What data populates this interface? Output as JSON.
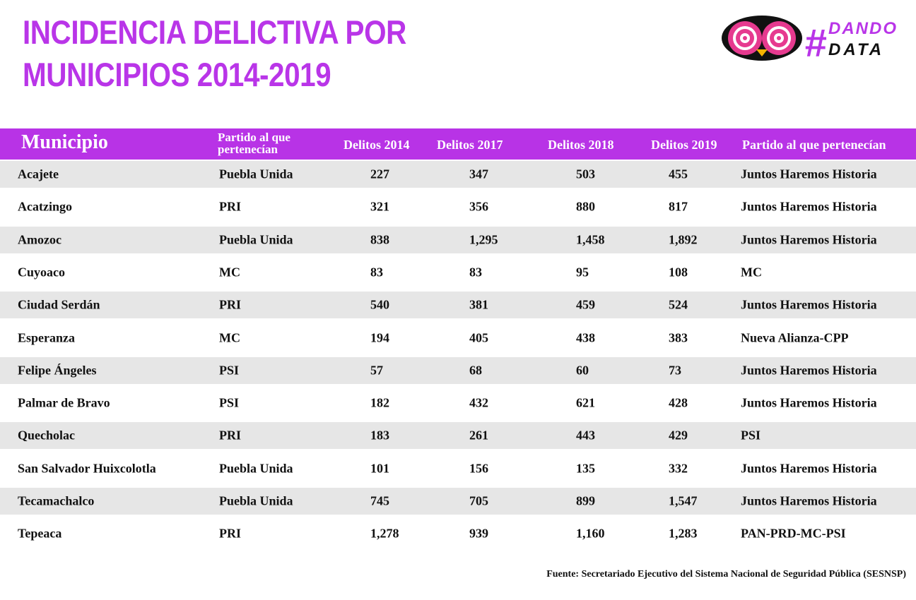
{
  "header": {
    "title": [
      "INCIDENCIA DELICTIVA POR",
      "MUNICIPIOS 2014-2019"
    ]
  },
  "logo": {
    "hash": "#",
    "line1": "DANDO",
    "line2": "DATA"
  },
  "table": {
    "columns": [
      "Municipio",
      "Partido al que pertenecían",
      "Delitos 2014",
      "Delitos 2017",
      "Delitos 2018",
      "Delitos 2019",
      "Partido al que pertenecían"
    ],
    "rows": [
      [
        "Acajete",
        "Puebla Unida",
        "227",
        "347",
        "503",
        "455",
        "Juntos Haremos Historia"
      ],
      [
        "Acatzingo",
        "PRI",
        "321",
        "356",
        "880",
        "817",
        "Juntos Haremos Historia"
      ],
      [
        "Amozoc",
        "Puebla Unida",
        "838",
        "1,295",
        "1,458",
        "1,892",
        "Juntos Haremos Historia"
      ],
      [
        "Cuyoaco",
        "MC",
        "83",
        "83",
        "95",
        "108",
        "MC"
      ],
      [
        "Ciudad Serdán",
        "PRI",
        "540",
        "381",
        "459",
        "524",
        "Juntos Haremos Historia"
      ],
      [
        "Esperanza",
        "MC",
        "194",
        "405",
        "438",
        "383",
        "Nueva Alianza-CPP"
      ],
      [
        "Felipe Ángeles",
        "PSI",
        "57",
        "68",
        "60",
        "73",
        "Juntos Haremos Historia"
      ],
      [
        "Palmar de Bravo",
        "PSI",
        "182",
        "432",
        "621",
        "428",
        "Juntos Haremos Historia"
      ],
      [
        "Quecholac",
        "PRI",
        "183",
        "261",
        "443",
        "429",
        "PSI"
      ],
      [
        "San Salvador Huixcolotla",
        "Puebla Unida",
        "101",
        "156",
        "135",
        "332",
        "Juntos Haremos Historia"
      ],
      [
        "Tecamachalco",
        "Puebla Unida",
        "745",
        "705",
        "899",
        "1,547",
        "Juntos Haremos Historia"
      ],
      [
        "Tepeaca",
        "PRI",
        "1,278",
        "939",
        "1,160",
        "1,283",
        "PAN-PRD-MC-PSI"
      ]
    ]
  },
  "footer": {
    "source": "Fuente: Secretariado Ejecutivo del Sistema Nacional de Seguridad Pública (SESNSP)"
  }
}
